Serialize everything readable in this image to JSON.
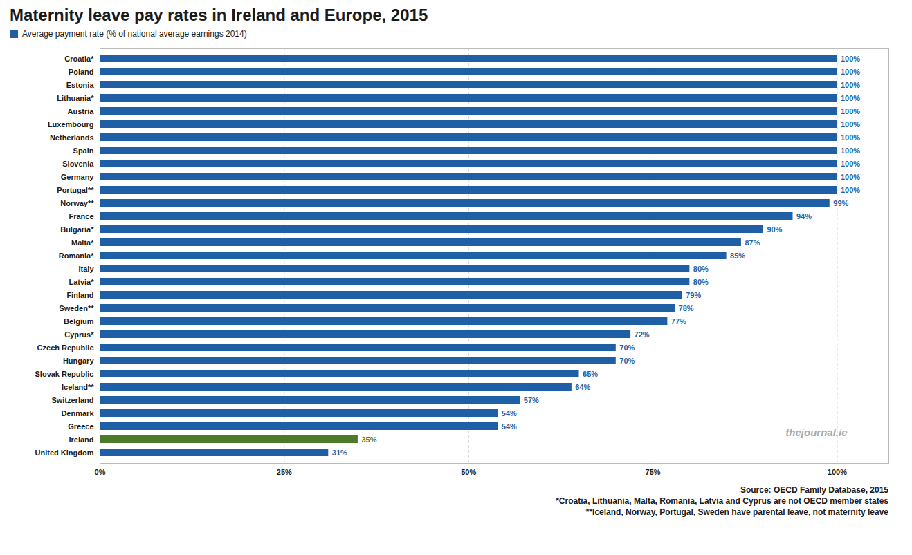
{
  "chart_data": {
    "type": "bar",
    "orientation": "horizontal",
    "title": "Maternity leave pay rates in Ireland and Europe, 2015",
    "categories": [
      "Croatia*",
      "Poland",
      "Estonia",
      "Lithuania*",
      "Austria",
      "Luxembourg",
      "Netherlands",
      "Spain",
      "Slovenia",
      "Germany",
      "Portugal**",
      "Norway**",
      "France",
      "Bulgaria*",
      "Malta*",
      "Romania*",
      "Italy",
      "Latvia*",
      "Finland",
      "Sweden**",
      "Belgium",
      "Cyprus*",
      "Czech Republic",
      "Hungary",
      "Slovak Republic",
      "Iceland**",
      "Switzerland",
      "Denmark",
      "Greece",
      "Ireland",
      "United Kingdom"
    ],
    "series": [
      {
        "name": "Average payment rate (% of national average earnings 2014)",
        "color": "#1F5FA6",
        "colors": [
          "#1F5FA6",
          "#1F5FA6",
          "#1F5FA6",
          "#1F5FA6",
          "#1F5FA6",
          "#1F5FA6",
          "#1F5FA6",
          "#1F5FA6",
          "#1F5FA6",
          "#1F5FA6",
          "#1F5FA6",
          "#1F5FA6",
          "#1F5FA6",
          "#1F5FA6",
          "#1F5FA6",
          "#1F5FA6",
          "#1F5FA6",
          "#1F5FA6",
          "#1F5FA6",
          "#1F5FA6",
          "#1F5FA6",
          "#1F5FA6",
          "#1F5FA6",
          "#1F5FA6",
          "#1F5FA6",
          "#1F5FA6",
          "#1F5FA6",
          "#1F5FA6",
          "#1F5FA6",
          "#4D7A29",
          "#1F5FA6"
        ],
        "values": [
          100,
          100,
          100,
          100,
          100,
          100,
          100,
          100,
          100,
          100,
          100,
          99,
          94,
          90,
          87,
          85,
          80,
          80,
          79,
          78,
          77,
          72,
          70,
          70,
          65,
          64,
          57,
          54,
          54,
          35,
          31
        ],
        "value_labels": [
          "100%",
          "100%",
          "100%",
          "100%",
          "100%",
          "100%",
          "100%",
          "100%",
          "100%",
          "100%",
          "100%",
          "99%",
          "94%",
          "90%",
          "87%",
          "85%",
          "80%",
          "80%",
          "79%",
          "78%",
          "77%",
          "72%",
          "70%",
          "70%",
          "65%",
          "64%",
          "57%",
          "54%",
          "54%",
          "35%",
          "31%"
        ]
      }
    ],
    "xlim": [
      0,
      107
    ],
    "xticks": [
      {
        "value": 0,
        "label": "0%"
      },
      {
        "value": 25,
        "label": "25%"
      },
      {
        "value": 50,
        "label": "50%"
      },
      {
        "value": 75,
        "label": "75%"
      },
      {
        "value": 100,
        "label": "100%"
      }
    ],
    "grid": true,
    "legend": "upper left",
    "data_labels": true,
    "annotations": [
      {
        "text": "thejournal.ie",
        "color": "#AAAAAA"
      }
    ],
    "footnotes": [
      "Source: OECD Family Database, 2015",
      "*Croatia, Lithuania, Malta, Romania, Latvia and Cyprus are not OECD member states",
      "**Iceland, Norway, Portugal, Sweden have parental leave, not maternity leave"
    ]
  }
}
